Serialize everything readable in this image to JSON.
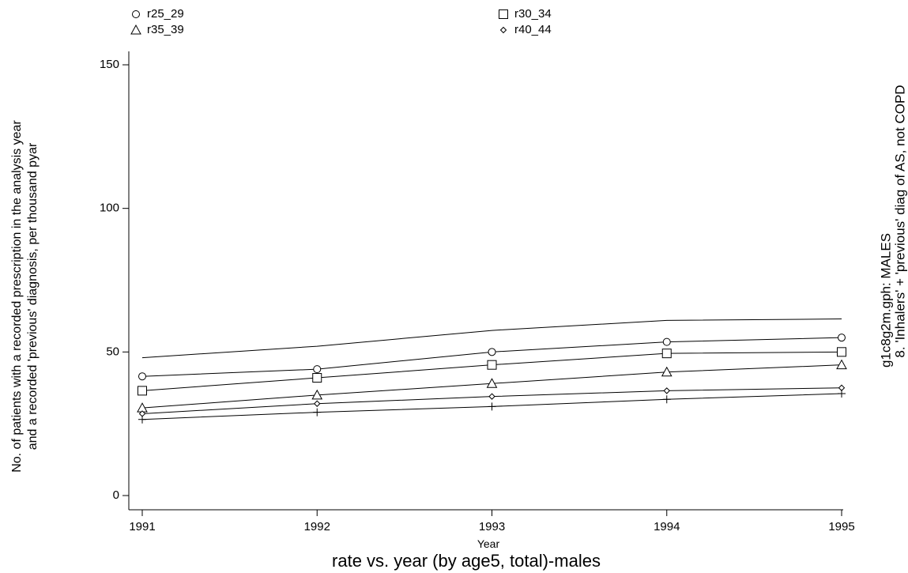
{
  "chart_data": {
    "type": "line",
    "title": "rate vs. year (by age5, total)-males",
    "xlabel": "Year",
    "ylabel_line1": "No. of patients with a recorded prescription in the analysis year",
    "ylabel_line2": "and a recorded 'previous' diagnosis, per thousand pyar",
    "side_note_line1": "g1c8g2m.gph: MALES",
    "side_note_line2": "8.  'Inhalers' + 'previous' diag of AS, not COPD",
    "x": [
      1991,
      1992,
      1993,
      1994,
      1995
    ],
    "x_ticks": [
      "1991",
      "1992",
      "1993",
      "1994",
      "1995"
    ],
    "y_ticks": [
      "0",
      "50",
      "100",
      "150"
    ],
    "xlim": [
      1991,
      1995
    ],
    "ylim": [
      0,
      150
    ],
    "grid": false,
    "legend_position": "top",
    "series": [
      {
        "name": "r25_29",
        "marker": "circle",
        "values": [
          41.5,
          44,
          50,
          53.5,
          55
        ]
      },
      {
        "name": "r30_34",
        "marker": "square",
        "values": [
          36.5,
          41,
          45.5,
          49.5,
          50
        ]
      },
      {
        "name": "r35_39",
        "marker": "triangle",
        "values": [
          30.5,
          35,
          39,
          43,
          45.5
        ]
      },
      {
        "name": "r40_44",
        "marker": "diamond",
        "values": [
          28.5,
          32,
          34.5,
          36.5,
          37.5
        ]
      },
      {
        "marker": "none",
        "values": [
          48,
          52,
          57.5,
          61,
          61.5
        ]
      },
      {
        "marker": "plus",
        "values": [
          26.5,
          29,
          31,
          33.5,
          35.5
        ]
      }
    ]
  }
}
